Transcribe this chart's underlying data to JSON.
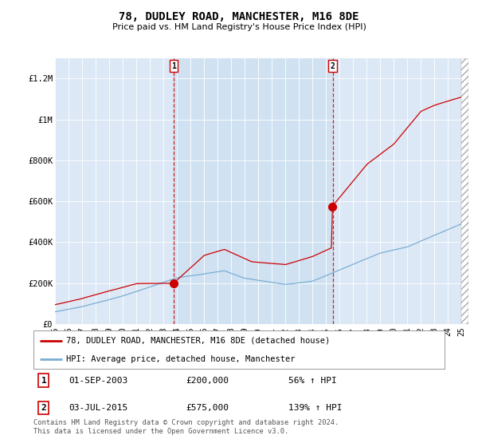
{
  "title": "78, DUDLEY ROAD, MANCHESTER, M16 8DE",
  "subtitle": "Price paid vs. HM Land Registry's House Price Index (HPI)",
  "legend_label_red": "78, DUDLEY ROAD, MANCHESTER, M16 8DE (detached house)",
  "legend_label_blue": "HPI: Average price, detached house, Manchester",
  "annotation1_date": "01-SEP-2003",
  "annotation1_price": "£200,000",
  "annotation1_pct": "56% ↑ HPI",
  "annotation2_date": "03-JUL-2015",
  "annotation2_price": "£575,000",
  "annotation2_pct": "139% ↑ HPI",
  "footnote": "Contains HM Land Registry data © Crown copyright and database right 2024.\nThis data is licensed under the Open Government Licence v3.0.",
  "red_color": "#cc0000",
  "blue_color": "#7aadd4",
  "shade_color": "#dce8f5",
  "background_color": "#dce8f5",
  "ylim": [
    0,
    1300000
  ],
  "yticks": [
    0,
    200000,
    400000,
    600000,
    800000,
    1000000,
    1200000
  ],
  "ytick_labels": [
    "£0",
    "£200K",
    "£400K",
    "£600K",
    "£800K",
    "£1M",
    "£1.2M"
  ],
  "sale1_year": 2003.75,
  "sale1_price": 200000,
  "sale2_year": 2015.5,
  "sale2_price": 575000,
  "xstart": 1995,
  "xend": 2025
}
